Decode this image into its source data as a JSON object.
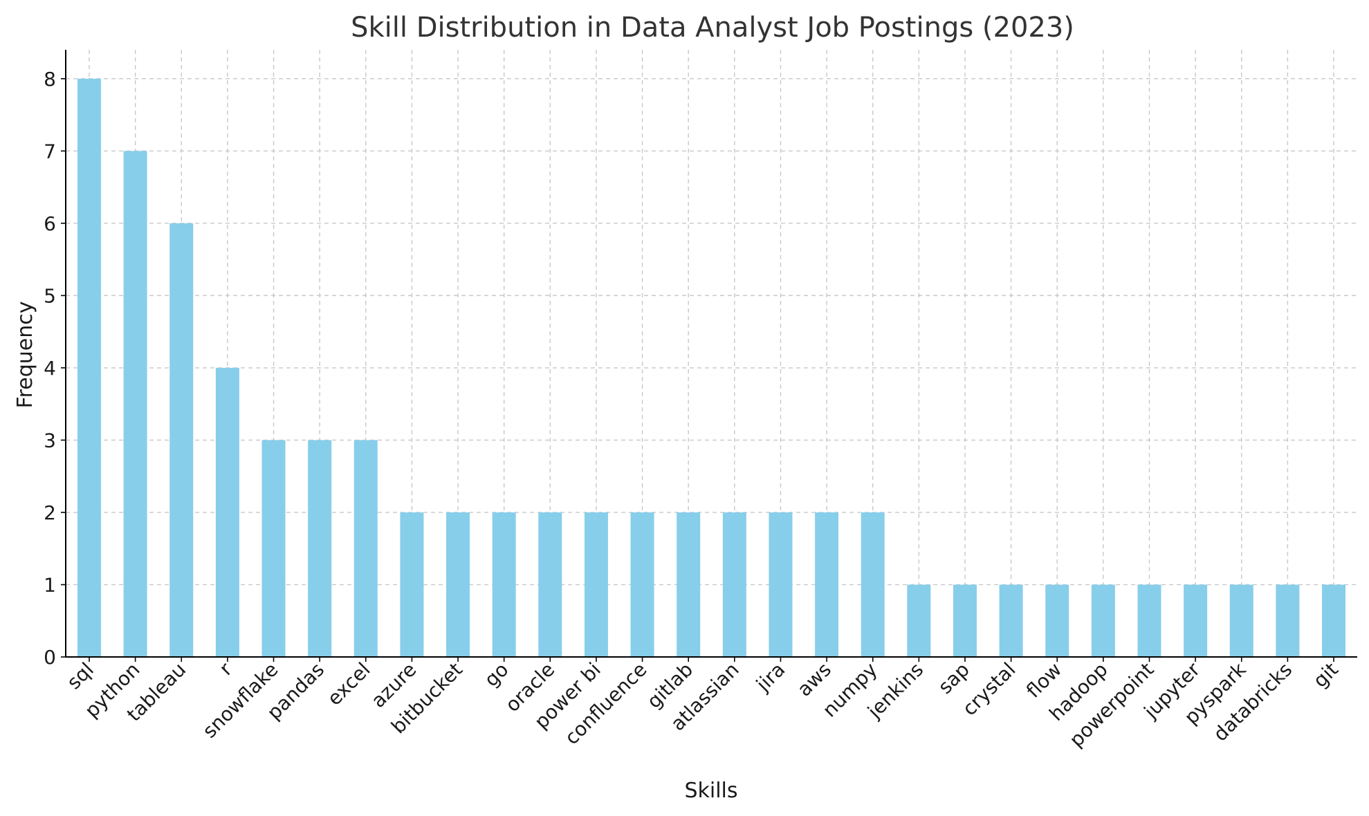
{
  "chart_data": {
    "type": "bar",
    "title": "Skill Distribution in Data Analyst Job Postings (2023)",
    "xlabel": "Skills",
    "ylabel": "Frequency",
    "categories": [
      "sql",
      "python",
      "tableau",
      "r",
      "snowflake",
      "pandas",
      "excel",
      "azure",
      "bitbucket",
      "go",
      "oracle",
      "power bi",
      "confluence",
      "gitlab",
      "atlassian",
      "jira",
      "aws",
      "numpy",
      "jenkins",
      "sap",
      "crystal",
      "flow",
      "hadoop",
      "powerpoint",
      "jupyter",
      "pyspark",
      "databricks",
      "git"
    ],
    "values": [
      8,
      7,
      6,
      4,
      3,
      3,
      3,
      2,
      2,
      2,
      2,
      2,
      2,
      2,
      2,
      2,
      2,
      2,
      1,
      1,
      1,
      1,
      1,
      1,
      1,
      1,
      1,
      1
    ],
    "ylim": [
      0,
      8.4
    ],
    "yticks": [
      0,
      1,
      2,
      3,
      4,
      5,
      6,
      7,
      8
    ],
    "grid": true,
    "bar_color": "#87ceeb"
  }
}
